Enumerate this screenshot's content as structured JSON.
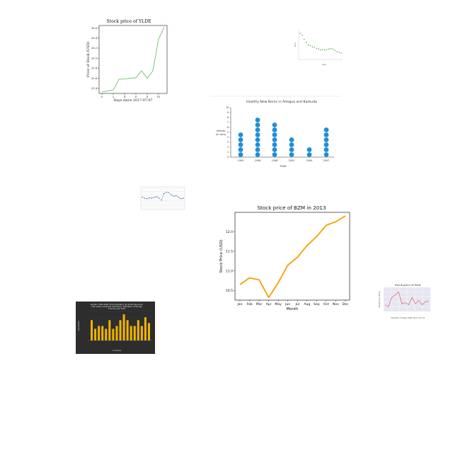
{
  "chart_data": [
    {
      "type": "line",
      "title": "Stock price of YLDE",
      "xlabel": "Days since 2017-07-07",
      "ylabel": "Price of Stock (USD)",
      "x": [
        0,
        1,
        2,
        3,
        4,
        5,
        6,
        7,
        8,
        9,
        10,
        11
      ],
      "series": [
        {
          "values": [
            25.33,
            25.35,
            25.37,
            25.58,
            25.59,
            25.6,
            25.61,
            25.75,
            25.6,
            25.75,
            26.38,
            26.62
          ]
        }
      ],
      "xticks": [
        "0",
        "2",
        "4",
        "6",
        "8",
        "10"
      ],
      "yticks": [
        "25.4",
        "25.6",
        "25.8",
        "26.0",
        "26.2",
        "26.4",
        "26.6"
      ],
      "xlim": [
        -0.5,
        11.5
      ],
      "ylim": [
        25.3,
        26.65
      ],
      "color": "#5cb85c"
    },
    {
      "type": "scatter",
      "title": "",
      "xlabel": "Year",
      "ylabel": "Price",
      "x": [
        0,
        1,
        2,
        3,
        4,
        5,
        6,
        7,
        8,
        9,
        10,
        11,
        12,
        13,
        14,
        15,
        16,
        17,
        18,
        19,
        20
      ],
      "series": [
        {
          "values": [
            10,
            9.6,
            8.7,
            8,
            7.4,
            7.3,
            7,
            6.9,
            6.6,
            6.5,
            6.3,
            6.4,
            6.3,
            6.4,
            6.5,
            6.6,
            6.5,
            6.2,
            5.9,
            5.8,
            5.6
          ]
        }
      ],
      "ylim": [
        4.5,
        10.5
      ],
      "color": "#2ca02c"
    },
    {
      "type": "scatter",
      "title": "Healthy New Borns in Antigua and Barbuda",
      "xlabel": "YEAR",
      "ylabel": "Infants\n(in lacs)",
      "categories": [
        "1995",
        "1996",
        "1998",
        "2001",
        "2004",
        "2007"
      ],
      "values": [
        5,
        8,
        7,
        4,
        2,
        6
      ],
      "yticks": [
        "0",
        "1",
        "2",
        "3",
        "4",
        "5",
        "6",
        "7",
        "8",
        "9",
        "10"
      ],
      "ylim": [
        0,
        10
      ],
      "color": "#1f8fd6"
    },
    {
      "type": "line",
      "title": "",
      "x": [
        0,
        1,
        2,
        3,
        4,
        5,
        6,
        7,
        8,
        9,
        10,
        11,
        12,
        13,
        14,
        15,
        16,
        17
      ],
      "series": [
        {
          "values": [
            5.2,
            5.0,
            4.9,
            5.1,
            5.0,
            5.2,
            5.3,
            5.0,
            4.6,
            5.9,
            6.2,
            6.1,
            5.7,
            5.4,
            5.5,
            5.2,
            4.9,
            5.0
          ]
        }
      ],
      "ylim": [
        3,
        7
      ],
      "color": "#1f4fa8"
    },
    {
      "type": "line",
      "title": "Stock price of BZM in 2013",
      "xlabel": "Month",
      "ylabel": "Stock Price (USD)",
      "categories": [
        "Jan",
        "Feb",
        "Mar",
        "Apr",
        "May",
        "Jun",
        "Jul",
        "Aug",
        "Sep",
        "Oct",
        "Nov",
        "Dec"
      ],
      "values": [
        10.65,
        10.82,
        10.77,
        10.32,
        10.7,
        11.15,
        11.35,
        11.65,
        11.88,
        12.17,
        12.26,
        12.41
      ],
      "yticks": [
        "10.5",
        "11.0",
        "11.5",
        "12.0"
      ],
      "ylim": [
        10.25,
        12.5
      ],
      "color": "#f5a000"
    },
    {
      "type": "line",
      "title": "Stock price of RLB",
      "xlabel": "Number of Days after 2017-10-14",
      "ylabel": "Stock Price (USD)",
      "x": [
        0,
        1,
        2,
        3,
        4,
        5,
        6,
        7,
        8,
        9,
        10,
        11,
        12,
        13
      ],
      "series": [
        {
          "values": [
            21,
            19,
            28,
            30,
            33,
            22,
            23,
            21,
            28,
            22,
            25,
            21,
            24,
            24
          ]
        }
      ],
      "ylim": [
        16,
        36
      ],
      "color": "#e06060"
    },
    {
      "type": "bar",
      "title": "Sweden, 1990–2000: Child population (by broad age group, both sexes combined) information; Population under age 5 for the year 1997",
      "xlabel": "countries",
      "ylabel": "Population",
      "values": [
        7,
        4,
        5,
        5,
        4,
        7,
        4,
        5,
        7,
        9,
        7,
        5,
        5,
        7,
        5,
        8,
        6
      ],
      "ylim": [
        0,
        10
      ],
      "color": "#f0b400"
    }
  ]
}
